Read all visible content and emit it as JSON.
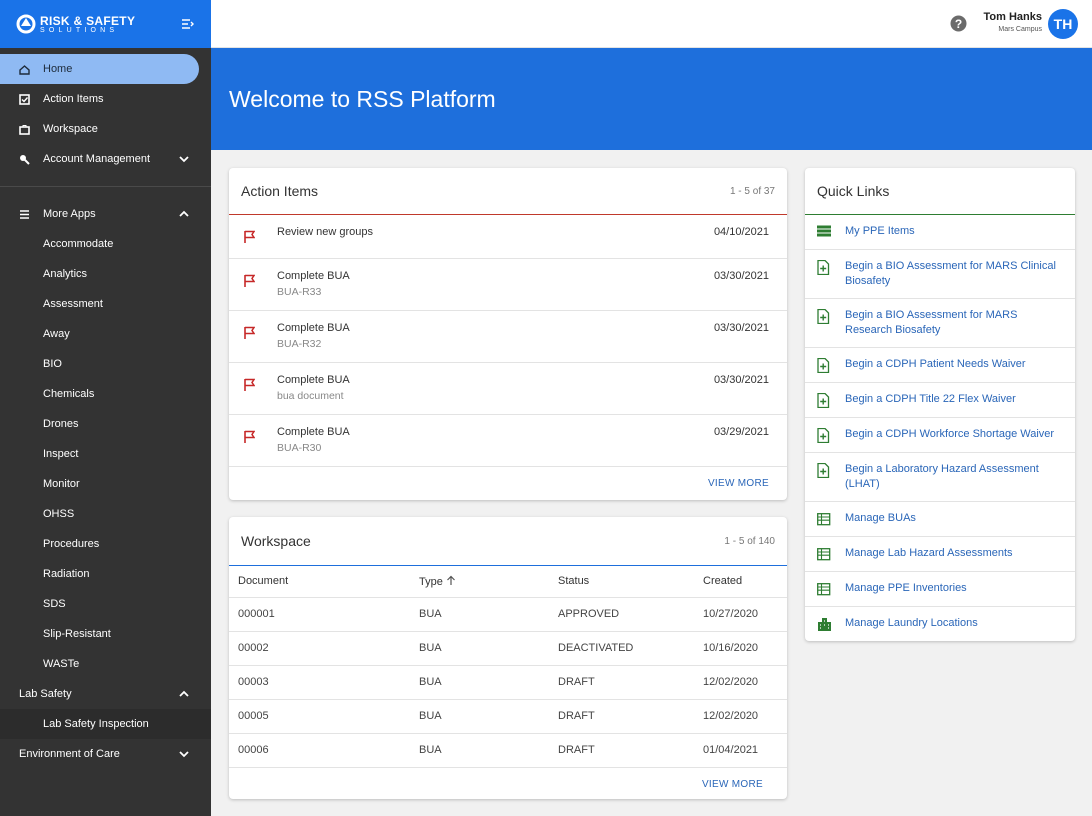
{
  "sidebar": {
    "logo": {
      "title": "RISK & SAFETY",
      "subtitle": "SOLUTIONS"
    },
    "nav": [
      "Home",
      "Action Items",
      "Workspace",
      "Account Management"
    ],
    "more_apps": {
      "label": "More Apps",
      "items": [
        "Accommodate",
        "Analytics",
        "Assessment",
        "Away",
        "BIO",
        "Chemicals",
        "Drones",
        "Inspect",
        "Monitor",
        "OHSS",
        "Procedures",
        "Radiation",
        "SDS",
        "Slip-Resistant",
        "WASTe"
      ]
    },
    "lab_safety": {
      "label": "Lab Safety",
      "items": [
        "Lab Safety Inspection"
      ]
    },
    "environment_of_care": {
      "label": "Environment of Care"
    }
  },
  "header": {
    "user_name": "Tom Hanks",
    "campus": "Mars Campus",
    "initials": "TH"
  },
  "banner": {
    "title": "Welcome to RSS Platform"
  },
  "action_items": {
    "title": "Action Items",
    "range": "1 - 5 of 37",
    "items": [
      {
        "title": "Review new groups",
        "date": "04/10/2021"
      },
      {
        "title": "Complete BUA",
        "subtitle": "BUA-R33",
        "date": "03/30/2021"
      },
      {
        "title": "Complete BUA",
        "subtitle": "BUA-R32",
        "date": "03/30/2021"
      },
      {
        "title": "Complete BUA",
        "subtitle": "bua document",
        "date": "03/30/2021"
      },
      {
        "title": "Complete BUA",
        "subtitle": "BUA-R30",
        "date": "03/29/2021"
      }
    ],
    "view_more": "VIEW MORE"
  },
  "workspace": {
    "title": "Workspace",
    "range": "1 - 5 of 140",
    "columns": [
      "Document",
      "Type",
      "Status",
      "Created"
    ],
    "rows": [
      [
        "000001",
        "BUA",
        "APPROVED",
        "10/27/2020"
      ],
      [
        "00002",
        "BUA",
        "DEACTIVATED",
        "10/16/2020"
      ],
      [
        "00003",
        "BUA",
        "DRAFT",
        "12/02/2020"
      ],
      [
        "00005",
        "BUA",
        "DRAFT",
        "12/02/2020"
      ],
      [
        "00006",
        "BUA",
        "DRAFT",
        "01/04/2021"
      ]
    ],
    "view_more": "VIEW MORE"
  },
  "quick_links": {
    "title": "Quick Links",
    "links": [
      "My PPE Items",
      "Begin a BIO Assessment for MARS Clinical Biosafety",
      "Begin a BIO Assessment for MARS Research Biosafety",
      "Begin a CDPH Patient Needs Waiver",
      "Begin a CDPH Title 22 Flex Waiver",
      "Begin a CDPH Workforce Shortage Waiver",
      "Begin a Laboratory Hazard Assessment (LHAT)",
      "Manage BUAs",
      "Manage Lab Hazard Assessments",
      "Manage PPE Inventories",
      "Manage Laundry Locations"
    ]
  }
}
